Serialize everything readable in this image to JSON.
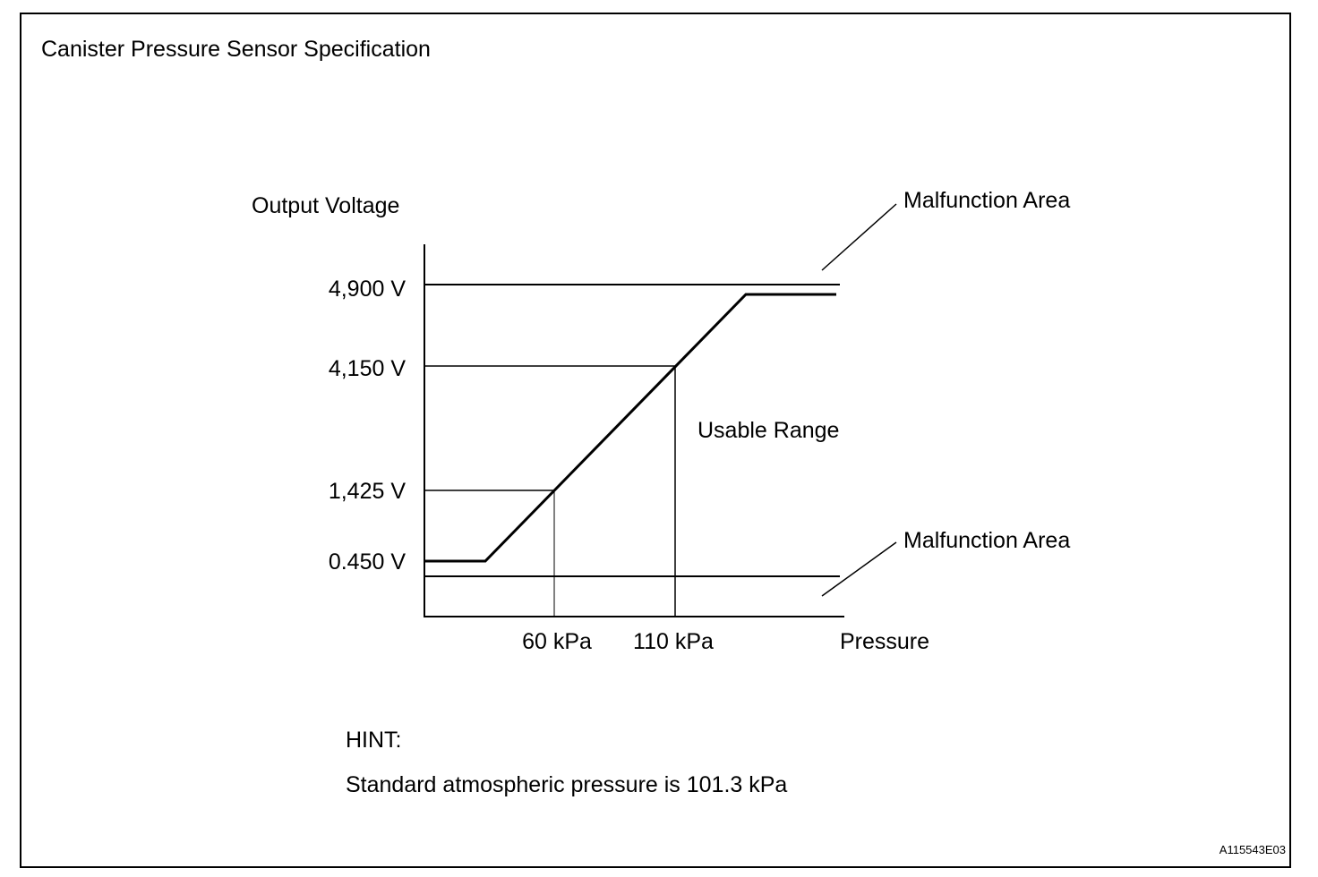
{
  "title": "Canister Pressure Sensor Specification",
  "y_axis_label": "Output Voltage",
  "x_axis_label": "Pressure",
  "y_ticks": [
    "4,900 V",
    "4,150 V",
    "1,425 V",
    "0.450 V"
  ],
  "x_ticks": [
    "60 kPa",
    "110 kPa"
  ],
  "annotations": {
    "upper_malfunction": "Malfunction Area",
    "lower_malfunction": "Malfunction Area",
    "usable_range": "Usable Range"
  },
  "hint": {
    "heading": "HINT:",
    "text": "Standard atmospheric pressure is 101.3 kPa"
  },
  "reference_code": "A115543E03",
  "colors": {
    "line": "#000000",
    "background": "#ffffff"
  }
}
